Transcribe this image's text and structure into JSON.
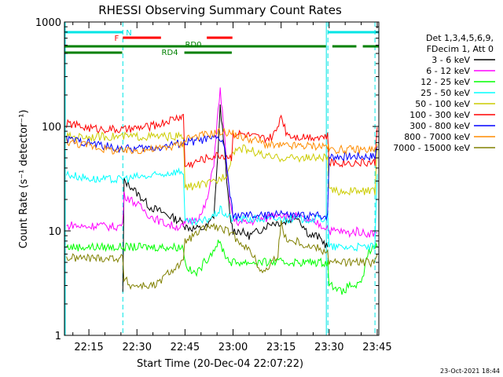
{
  "chart_data": {
    "type": "line",
    "title": "RHESSI Observing Summary Count Rates",
    "xlabel": "Start Time (20-Dec-04 22:07:22)",
    "ylabel": "Count Rate (s⁻¹ detector⁻¹)",
    "x_unit": "minutes after 22:00 UT",
    "xlim": [
      7.37,
      105.5
    ],
    "ylim": [
      1,
      1000
    ],
    "yscale": "log",
    "x_ticks": [
      15,
      30,
      45,
      60,
      75,
      90,
      105
    ],
    "x_tick_labels": [
      "22:15",
      "22:30",
      "22:45",
      "23:00",
      "23:15",
      "23:30",
      "23:45"
    ],
    "y_ticks": [
      1,
      10,
      100,
      1000
    ],
    "y_tick_labels": [
      "1",
      "10",
      "100",
      "1000"
    ],
    "legend": {
      "header": [
        "Det 1,3,4,5,6,9,",
        "FDecim 1, Att 0"
      ],
      "placement": "right, outside plot"
    },
    "footer_date": "23-Oct-2021 18:44",
    "segments": {
      "night": {
        "label": "N",
        "color": "#00e5e5",
        "ranges": [
          [
            7.37,
            25.6
          ],
          [
            89.6,
            105.5
          ]
        ]
      },
      "flare": {
        "label": "F",
        "color": "#ff0000",
        "ranges": [
          [
            25.6,
            37.5
          ],
          [
            51.8,
            59.8
          ]
        ]
      },
      "rd0": {
        "label": "RD0",
        "color": "#008000",
        "ranges": [
          [
            7.37,
            89.0
          ],
          [
            91.0,
            98.5
          ],
          [
            100.5,
            105.5
          ]
        ]
      },
      "rd4": {
        "label": "RD4",
        "color": "#008000",
        "ranges": [
          [
            7.37,
            25.4
          ],
          [
            44.8,
            59.6
          ]
        ]
      }
    },
    "eclipse_boundaries": [
      25.6,
      89.6
    ],
    "attenuator_boundary": 104.3,
    "series": [
      {
        "name": "3 - 6 keV",
        "color": "#000000",
        "x": [
          25.6,
          26,
          28,
          30,
          32,
          34,
          36,
          38,
          40,
          42,
          44.5,
          45,
          48,
          50,
          52,
          54,
          55,
          56,
          57,
          58,
          59,
          60,
          62,
          65,
          68,
          70,
          72,
          74,
          76,
          78,
          80,
          82,
          84,
          86,
          88,
          89.5
        ],
        "y": [
          2.5,
          30,
          27,
          23,
          20,
          17,
          16,
          15,
          14,
          13,
          12,
          11,
          10.5,
          10.5,
          11,
          14,
          40,
          150,
          80,
          30,
          14,
          10,
          10,
          9,
          10,
          11,
          12,
          12,
          12,
          13,
          14,
          11,
          9,
          9,
          8,
          7
        ]
      },
      {
        "name": "6 - 12 keV",
        "color": "#ff00ff",
        "x": [
          8,
          10,
          12,
          15,
          18,
          20,
          22,
          24,
          25.5,
          26,
          28,
          30,
          32,
          34,
          36,
          38,
          40,
          42,
          44.5,
          45,
          48,
          50,
          52,
          54,
          55,
          56,
          57,
          58,
          59,
          60,
          62,
          65,
          68,
          70,
          72,
          74,
          76,
          78,
          80,
          82,
          84,
          86,
          88,
          89.5,
          90,
          93,
          96,
          99,
          101,
          103,
          105
        ],
        "y": [
          11,
          11.5,
          11,
          11,
          11.5,
          11,
          11,
          11,
          11.5,
          22,
          20,
          18,
          16,
          14,
          13,
          12,
          11.5,
          11,
          11,
          12,
          13,
          14,
          20,
          45,
          110,
          220,
          110,
          40,
          20,
          13,
          12,
          12,
          13,
          13,
          14,
          15,
          14,
          13,
          14,
          13,
          12,
          12,
          11,
          11,
          10,
          10,
          9.5,
          10,
          9.5,
          9.5,
          9.5
        ]
      },
      {
        "name": "12 - 25 keV",
        "color": "#00ff00",
        "x": [
          8,
          12,
          18,
          24,
          25.5,
          44.5,
          45,
          47,
          49,
          51,
          53,
          55,
          56,
          57,
          58,
          59.5,
          89.6,
          90,
          92,
          94,
          96,
          98,
          100,
          102,
          104,
          105
        ],
        "y": [
          7,
          7,
          7,
          7,
          7,
          7,
          5,
          4,
          4,
          5,
          6,
          7.5,
          7.5,
          6.5,
          5.5,
          5,
          5,
          3,
          3,
          2.5,
          3,
          3,
          3,
          6,
          7,
          7
        ]
      },
      {
        "name": "25 - 50 keV",
        "color": "#00ffff",
        "x": [
          8,
          10,
          12,
          15,
          18,
          20,
          22,
          24,
          26,
          28,
          30,
          32,
          34,
          36,
          38,
          40,
          42,
          44.5,
          45,
          48,
          50,
          52,
          54,
          55,
          56,
          57,
          58,
          60,
          62,
          65,
          68,
          70,
          72,
          74,
          75,
          76,
          78,
          80,
          82,
          84,
          86,
          88,
          89.5,
          90,
          93,
          96,
          99,
          101,
          103,
          104.3,
          105
        ],
        "y": [
          35,
          34,
          33,
          32,
          31,
          31,
          31,
          31,
          32,
          32,
          33,
          33,
          33,
          34,
          35,
          36,
          37,
          37,
          12,
          12,
          12,
          13,
          14,
          15,
          16,
          15,
          14,
          13,
          13,
          13,
          13,
          13,
          13,
          13,
          13,
          13,
          13,
          13,
          13,
          13,
          13,
          13,
          14,
          7,
          7,
          7,
          7,
          7,
          7,
          7,
          35
        ]
      },
      {
        "name": "50 - 100 keV",
        "color": "#cccc00",
        "x": [
          8,
          12,
          18,
          24,
          30,
          36,
          40,
          44.5,
          45,
          48,
          50,
          52,
          55,
          56,
          58,
          60,
          62,
          65,
          68,
          70,
          72,
          74,
          75,
          76,
          78,
          80,
          84,
          89.5,
          90,
          93,
          96,
          99,
          101,
          103,
          104.3,
          105
        ],
        "y": [
          80,
          80,
          80,
          80,
          80,
          80,
          80,
          80,
          26,
          27,
          28,
          28,
          30,
          32,
          35,
          58,
          62,
          60,
          55,
          52,
          50,
          50,
          50,
          50,
          50,
          50,
          50,
          50,
          24,
          24,
          24,
          24,
          24,
          24,
          24,
          68
        ]
      },
      {
        "name": "100 - 300 keV",
        "color": "#ff0000",
        "x": [
          8,
          10,
          12,
          14,
          16,
          18,
          20,
          22,
          24,
          26,
          28,
          30,
          32,
          34,
          36,
          38,
          40,
          42,
          44.5,
          45,
          48,
          50,
          52,
          54,
          56,
          58,
          59.5,
          60,
          62,
          64,
          66,
          68,
          70,
          72,
          73.5,
          75,
          76.5,
          78,
          80,
          82,
          84,
          86,
          88,
          89.5,
          90,
          93,
          96,
          99,
          101,
          103,
          104.3,
          105
        ],
        "y": [
          105,
          105,
          100,
          98,
          96,
          95,
          95,
          94,
          93,
          93,
          94,
          96,
          98,
          100,
          103,
          108,
          114,
          120,
          126,
          42,
          45,
          48,
          50,
          52,
          53,
          52,
          50,
          85,
          85,
          83,
          80,
          78,
          76,
          78,
          90,
          130,
          90,
          82,
          80,
          80,
          80,
          80,
          80,
          80,
          45,
          45,
          45,
          45,
          45,
          45,
          45,
          98
        ]
      },
      {
        "name": "300 - 800 keV",
        "color": "#0000ff",
        "x": [
          8,
          10,
          12,
          15,
          18,
          20,
          22,
          24,
          26,
          28,
          30,
          32,
          34,
          36,
          38,
          40,
          42,
          44.5,
          45,
          48,
          50,
          52,
          54,
          56,
          57,
          58,
          59,
          60,
          62,
          65,
          68,
          70,
          72,
          73.5,
          75,
          76.5,
          78,
          80,
          82,
          84,
          86,
          88,
          89.5,
          90,
          93,
          96,
          99,
          101,
          103,
          104.3,
          105
        ],
        "y": [
          75,
          74,
          72,
          70,
          67,
          65,
          63,
          62,
          61,
          61,
          61,
          62,
          62,
          63,
          64,
          66,
          68,
          70,
          70,
          72,
          74,
          75,
          76,
          76,
          70,
          45,
          22,
          14,
          14,
          14,
          14,
          14,
          14,
          15,
          15,
          14,
          14,
          14,
          14,
          14,
          14,
          14,
          14,
          52,
          52,
          52,
          52,
          52,
          52,
          52,
          65
        ]
      },
      {
        "name": "800 - 7000 keV",
        "color": "#ff8c00",
        "x": [
          8,
          10,
          12,
          15,
          18,
          20,
          22,
          24,
          26,
          28,
          30,
          32,
          34,
          36,
          38,
          40,
          42,
          44.5,
          45,
          48,
          50,
          52,
          54,
          55,
          56,
          58,
          60,
          62,
          65,
          68,
          70,
          72,
          74,
          75,
          76,
          78,
          80,
          84,
          88,
          89.5,
          90,
          93,
          96,
          99,
          101,
          103,
          104.3,
          105
        ],
        "y": [
          72,
          70,
          68,
          66,
          63,
          61,
          59,
          58,
          58,
          58,
          59,
          60,
          60,
          61,
          62,
          64,
          66,
          68,
          78,
          80,
          82,
          84,
          86,
          88,
          89,
          88,
          85,
          80,
          76,
          72,
          68,
          66,
          65,
          65,
          65,
          65,
          65,
          65,
          65,
          65,
          60,
          60,
          60,
          60,
          60,
          60,
          60,
          64
        ]
      },
      {
        "name": "7000 - 15000 keV",
        "color": "#808000",
        "x": [
          8,
          10,
          12,
          15,
          18,
          20,
          22,
          24,
          25.5,
          26,
          28,
          30,
          32,
          34,
          36,
          38,
          40,
          42,
          44.5,
          45,
          48,
          50,
          52,
          54,
          56,
          58,
          60,
          62,
          64,
          66,
          68,
          70,
          72,
          74,
          75,
          76,
          78,
          80,
          82,
          84,
          86,
          88,
          89.5,
          90,
          93,
          96,
          99,
          101,
          103,
          104.3,
          105
        ],
        "y": [
          5.5,
          5.5,
          5.5,
          5.5,
          5.5,
          5.5,
          5.5,
          5.5,
          5.5,
          3.5,
          3,
          3,
          3,
          3,
          3,
          3.5,
          4,
          4.5,
          5,
          8,
          9,
          10,
          11,
          11,
          10.5,
          10,
          9,
          8,
          7,
          6,
          4.5,
          4,
          5,
          6,
          12,
          9,
          8,
          8,
          7.5,
          7,
          7,
          6.5,
          6.5,
          5,
          5,
          5,
          5,
          5,
          5,
          5,
          6
        ]
      }
    ]
  }
}
